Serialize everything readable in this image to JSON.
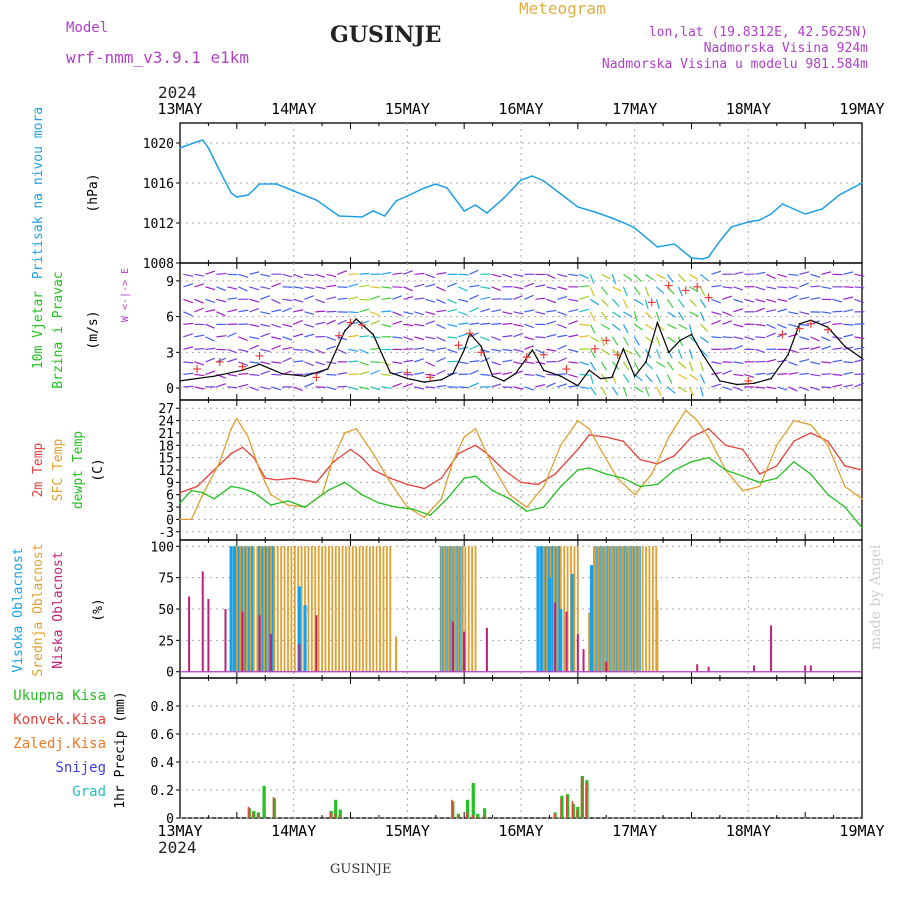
{
  "header": {
    "model_label": "Model",
    "model_name": "wrf-nmm_v3.9.1  e1km",
    "station": "GUSINJE",
    "meteogram": "Meteogram",
    "lonlat": "lon,lat (19.8312E, 42.5625N)",
    "altitude": "Nadmorska Visina 924m",
    "model_altitude": "Nadmorska Visina u modelu 981.584m",
    "year_top": "2024",
    "year_bottom": "2024",
    "footer_station": "GUSINJE",
    "credit": "made by Angel"
  },
  "colors": {
    "pressure": "#1ea0e6",
    "temp2m": "#e8403a",
    "sfc_temp": "#e0a030",
    "dewpt": "#22c020",
    "high_cloud": "#18a0e8",
    "mid_cloud": "#e0a030",
    "low_cloud": "#c0207a",
    "total_precip": "#22c020",
    "conv_precip": "#e8403a",
    "frozen": "#f07820",
    "snow": "#4040e0",
    "hail": "#20c0c0",
    "purple_text": "#b040c8",
    "orange_text": "#e0a030"
  },
  "chart_data": {
    "type": "line",
    "x_axis": {
      "ticks": [
        "13MAY",
        "14MAY",
        "15MAY",
        "16MAY",
        "17MAY",
        "18MAY",
        "19MAY"
      ],
      "range_days": [
        0,
        6
      ]
    },
    "panels": [
      {
        "id": "pressure",
        "ylabel": [
          "Pritisak na nivou mora",
          "(hPa)"
        ],
        "yticks": [
          1008,
          1012,
          1016,
          1020
        ],
        "ylim": [
          1008,
          1022
        ],
        "series": [
          {
            "color_key": "pressure",
            "x": [
              0,
              0.12,
              0.2,
              0.25,
              0.35,
              0.45,
              0.5,
              0.6,
              0.7,
              0.85,
              1.0,
              1.2,
              1.4,
              1.6,
              1.7,
              1.8,
              1.9,
              2.0,
              2.15,
              2.25,
              2.35,
              2.5,
              2.6,
              2.7,
              2.85,
              3.0,
              3.1,
              3.2,
              3.35,
              3.5,
              3.65,
              3.8,
              3.95,
              4.0,
              4.2,
              4.35,
              4.5,
              4.6,
              4.65,
              4.75,
              4.85,
              5.0,
              5.1,
              5.2,
              5.3,
              5.5,
              5.65,
              5.8,
              6.0
            ],
            "values": [
              1019.5,
              1020.0,
              1020.3,
              1019.5,
              1017.2,
              1015.0,
              1014.6,
              1014.8,
              1015.9,
              1015.9,
              1015.2,
              1014.3,
              1012.7,
              1012.6,
              1013.2,
              1012.7,
              1014.2,
              1014.7,
              1015.5,
              1015.9,
              1015.5,
              1013.2,
              1013.8,
              1013.0,
              1014.5,
              1016.3,
              1016.7,
              1016.2,
              1014.9,
              1013.6,
              1013.1,
              1012.5,
              1011.8,
              1011.5,
              1009.6,
              1009.9,
              1008.5,
              1008.4,
              1008.6,
              1010.2,
              1011.6,
              1012.1,
              1012.3,
              1012.9,
              1013.9,
              1012.9,
              1013.4,
              1014.8,
              1016.0
            ]
          }
        ]
      },
      {
        "id": "wind",
        "ylabel": [
          "10m Vjetar",
          "Brzina i Pravac",
          "(m/s)"
        ],
        "compass": "W <-|-> E",
        "yticks": [
          0,
          3,
          6,
          9
        ],
        "ylim": [
          -1,
          10.5
        ],
        "series": [
          {
            "name": "speed",
            "color": "#000000",
            "x": [
              0,
              0.3,
              0.55,
              0.7,
              0.9,
              1.1,
              1.3,
              1.45,
              1.55,
              1.7,
              1.85,
              2.0,
              2.15,
              2.3,
              2.4,
              2.5,
              2.55,
              2.65,
              2.75,
              2.85,
              2.95,
              3.1,
              3.2,
              3.35,
              3.5,
              3.6,
              3.7,
              3.8,
              3.9,
              4.0,
              4.1,
              4.2,
              4.3,
              4.4,
              4.5,
              4.6,
              4.75,
              4.9,
              5.05,
              5.2,
              5.35,
              5.45,
              5.55,
              5.7,
              5.85,
              6.0
            ],
            "values": [
              0.6,
              1.0,
              1.5,
              2.0,
              1.2,
              1.0,
              1.6,
              4.8,
              5.8,
              4.5,
              1.3,
              0.8,
              0.5,
              0.7,
              1.2,
              3.2,
              4.6,
              3.5,
              1.0,
              0.6,
              1.2,
              3.2,
              1.5,
              1.0,
              0.2,
              1.5,
              0.8,
              0.9,
              3.3,
              1.0,
              2.2,
              5.5,
              3.0,
              4.0,
              4.5,
              2.8,
              0.6,
              0.3,
              0.4,
              0.8,
              2.8,
              5.4,
              5.7,
              5.1,
              3.5,
              2.5
            ]
          }
        ],
        "marks": [
          {
            "name": "gust",
            "color": "#e8403a",
            "x": [
              0.15,
              0.35,
              0.55,
              0.7,
              1.2,
              1.4,
              1.5,
              1.6,
              2.0,
              2.2,
              2.45,
              2.55,
              2.65,
              3.05,
              3.2,
              3.4,
              3.65,
              3.75,
              3.85,
              4.15,
              4.3,
              4.45,
              4.55,
              4.65,
              5.0,
              5.3,
              5.45,
              5.55,
              5.7
            ],
            "values": [
              1.6,
              2.2,
              1.8,
              2.7,
              0.9,
              4.4,
              5.5,
              5.3,
              1.3,
              0.9,
              3.6,
              4.6,
              3.0,
              2.6,
              2.8,
              1.6,
              3.3,
              4.0,
              2.8,
              7.2,
              8.6,
              8.2,
              8.5,
              7.6,
              0.6,
              4.5,
              5.0,
              5.4,
              4.9
            ]
          }
        ]
      },
      {
        "id": "temperature",
        "ylabel": [
          "2m Temp",
          "SFC Temp",
          "dewpt Temp",
          "(C)"
        ],
        "yticks": [
          -3,
          0,
          3,
          6,
          9,
          12,
          15,
          18,
          21,
          24,
          27
        ],
        "ylim": [
          -5,
          29
        ],
        "series": [
          {
            "name": "2m Temp",
            "color_key": "temp2m",
            "x": [
              0,
              0.15,
              0.3,
              0.45,
              0.55,
              0.65,
              0.75,
              0.85,
              1.0,
              1.2,
              1.35,
              1.5,
              1.6,
              1.7,
              1.85,
              2.0,
              2.15,
              2.3,
              2.45,
              2.6,
              2.7,
              2.85,
              3.0,
              3.15,
              3.3,
              3.5,
              3.6,
              3.75,
              3.9,
              4.05,
              4.2,
              4.35,
              4.5,
              4.65,
              4.8,
              4.95,
              5.1,
              5.25,
              5.4,
              5.55,
              5.7,
              5.85,
              6.0
            ],
            "values": [
              6.5,
              8.0,
              12.0,
              16.0,
              17.5,
              15.0,
              10.0,
              9.6,
              10.0,
              9.0,
              14.0,
              17.0,
              15.0,
              12.0,
              10.0,
              8.5,
              7.5,
              10.0,
              16.0,
              18.0,
              16.0,
              12.0,
              9.0,
              8.5,
              11.0,
              17.0,
              20.5,
              20.0,
              19.0,
              14.5,
              13.5,
              15.5,
              20.0,
              22.0,
              18.0,
              17.0,
              11.0,
              13.0,
              19.0,
              21.0,
              19.0,
              13.0,
              12.0
            ]
          },
          {
            "name": "SFC Temp",
            "color_key": "sfc_temp",
            "x": [
              0,
              0.1,
              0.2,
              0.35,
              0.45,
              0.5,
              0.6,
              0.7,
              0.8,
              0.95,
              1.1,
              1.25,
              1.35,
              1.45,
              1.55,
              1.7,
              1.85,
              2.0,
              2.15,
              2.3,
              2.4,
              2.5,
              2.6,
              2.75,
              2.9,
              3.05,
              3.2,
              3.35,
              3.5,
              3.6,
              3.7,
              3.85,
              4.0,
              4.15,
              4.3,
              4.45,
              4.55,
              4.65,
              4.8,
              4.95,
              5.1,
              5.25,
              5.4,
              5.55,
              5.7,
              5.85,
              6.0
            ],
            "values": [
              0,
              0,
              6.0,
              14.0,
              22.0,
              24.5,
              20.0,
              12.0,
              6.0,
              3.5,
              3.0,
              6.0,
              15.0,
              21.0,
              22.0,
              16.0,
              9.0,
              3.0,
              0.5,
              5.0,
              14.0,
              20.0,
              22.0,
              13.0,
              6.0,
              3.0,
              8.0,
              18.0,
              24.0,
              22.0,
              17.0,
              10.0,
              6.0,
              11.0,
              20.0,
              26.5,
              24.0,
              20.0,
              12.0,
              7.0,
              8.0,
              18.0,
              24.0,
              23.0,
              18.0,
              8.0,
              5.0
            ]
          },
          {
            "name": "dewpt Temp",
            "color_key": "dewpt",
            "x": [
              0,
              0.1,
              0.2,
              0.3,
              0.45,
              0.55,
              0.65,
              0.8,
              0.95,
              1.1,
              1.3,
              1.45,
              1.6,
              1.75,
              1.9,
              2.05,
              2.2,
              2.35,
              2.5,
              2.6,
              2.75,
              2.9,
              3.05,
              3.2,
              3.35,
              3.5,
              3.6,
              3.75,
              3.9,
              4.05,
              4.2,
              4.35,
              4.5,
              4.65,
              4.8,
              4.95,
              5.1,
              5.25,
              5.4,
              5.55,
              5.7,
              5.85,
              6.0
            ],
            "values": [
              4.0,
              7.0,
              6.5,
              5.0,
              8.0,
              7.5,
              6.5,
              3.5,
              4.5,
              3.0,
              7.0,
              9.0,
              6.0,
              4.0,
              3.0,
              2.5,
              1.0,
              5.0,
              10.0,
              10.5,
              7.0,
              5.0,
              2.0,
              3.0,
              8.0,
              12.0,
              12.5,
              11.0,
              10.0,
              8.0,
              8.5,
              12.0,
              14.0,
              15.0,
              12.0,
              10.5,
              9.0,
              10.0,
              14.0,
              11.0,
              6.0,
              3.0,
              -2.0
            ]
          }
        ]
      },
      {
        "id": "cloud",
        "ylabel": [
          "Visoka Oblacnost",
          "Srednja Oblacnost",
          "Niska Oblacnost",
          "(%)"
        ],
        "yticks": [
          0,
          25,
          50,
          75,
          100
        ],
        "ylim": [
          -5,
          105
        ],
        "high_bands": [
          [
            0.45,
            0.65
          ],
          [
            0.7,
            0.83
          ],
          [
            2.3,
            2.5
          ],
          [
            3.15,
            3.35
          ],
          [
            3.65,
            4.05
          ]
        ],
        "mid_bands": [
          [
            0.5,
            1.85
          ],
          [
            2.3,
            2.6
          ],
          [
            3.2,
            3.5
          ],
          [
            3.65,
            4.2
          ]
        ],
        "mid_partial": [
          [
            1.9,
            28
          ],
          [
            3.6,
            47
          ],
          [
            4.2,
            57
          ]
        ],
        "low_bars": [
          [
            0.08,
            60
          ],
          [
            0.2,
            80
          ],
          [
            0.25,
            58
          ],
          [
            0.4,
            50
          ],
          [
            0.55,
            48
          ],
          [
            0.7,
            45
          ],
          [
            0.8,
            30
          ],
          [
            1.05,
            22
          ],
          [
            1.2,
            45
          ],
          [
            2.4,
            40
          ],
          [
            2.5,
            32
          ],
          [
            2.7,
            35
          ],
          [
            3.3,
            55
          ],
          [
            3.4,
            48
          ],
          [
            3.5,
            30
          ],
          [
            3.55,
            18
          ],
          [
            3.75,
            8
          ],
          [
            4.55,
            6
          ],
          [
            4.65,
            4
          ],
          [
            5.05,
            5
          ],
          [
            5.2,
            37
          ],
          [
            5.5,
            5
          ],
          [
            5.55,
            5
          ]
        ],
        "high_partial": [
          [
            1.05,
            68
          ],
          [
            1.1,
            53
          ],
          [
            3.25,
            75
          ],
          [
            3.35,
            50
          ],
          [
            3.45,
            78
          ],
          [
            3.62,
            85
          ]
        ]
      },
      {
        "id": "precip",
        "ylabel": [
          "1hr Precip (mm)"
        ],
        "legend": [
          "Ukupna Kisa",
          "Konvek.Kisa",
          "Zaledj.Kisa",
          "Snijeg",
          "Grad"
        ],
        "yticks": [
          0,
          0.2,
          0.4,
          0.6,
          0.8
        ],
        "ylim": [
          0,
          1.0
        ],
        "bars": [
          {
            "x": 0.61,
            "total": 0.07,
            "conv": 0.08
          },
          {
            "x": 0.65,
            "total": 0.05,
            "conv": 0.04
          },
          {
            "x": 0.69,
            "total": 0.04,
            "conv": 0.03
          },
          {
            "x": 0.74,
            "total": 0.23,
            "conv": 0.0
          },
          {
            "x": 0.83,
            "total": 0.14,
            "conv": 0.15
          },
          {
            "x": 1.33,
            "total": 0.05,
            "conv": 0.04
          },
          {
            "x": 1.37,
            "total": 0.13,
            "conv": 0.03
          },
          {
            "x": 1.41,
            "total": 0.06,
            "conv": 0.02
          },
          {
            "x": 2.4,
            "total": 0.12,
            "conv": 0.13
          },
          {
            "x": 2.45,
            "total": 0.03,
            "conv": 0.02
          },
          {
            "x": 2.53,
            "total": 0.13,
            "conv": 0.04
          },
          {
            "x": 2.58,
            "total": 0.25,
            "conv": 0.02
          },
          {
            "x": 2.62,
            "total": 0.03,
            "conv": 0.01
          },
          {
            "x": 2.68,
            "total": 0.07,
            "conv": 0.02
          },
          {
            "x": 3.3,
            "total": 0.04,
            "conv": 0.03
          },
          {
            "x": 3.36,
            "total": 0.16,
            "conv": 0.14
          },
          {
            "x": 3.41,
            "total": 0.17,
            "conv": 0.16
          },
          {
            "x": 3.46,
            "total": 0.1,
            "conv": 0.12
          },
          {
            "x": 3.5,
            "total": 0.08,
            "conv": 0.06
          },
          {
            "x": 3.54,
            "total": 0.3,
            "conv": 0.29
          },
          {
            "x": 3.58,
            "total": 0.27,
            "conv": 0.25
          }
        ]
      }
    ]
  }
}
